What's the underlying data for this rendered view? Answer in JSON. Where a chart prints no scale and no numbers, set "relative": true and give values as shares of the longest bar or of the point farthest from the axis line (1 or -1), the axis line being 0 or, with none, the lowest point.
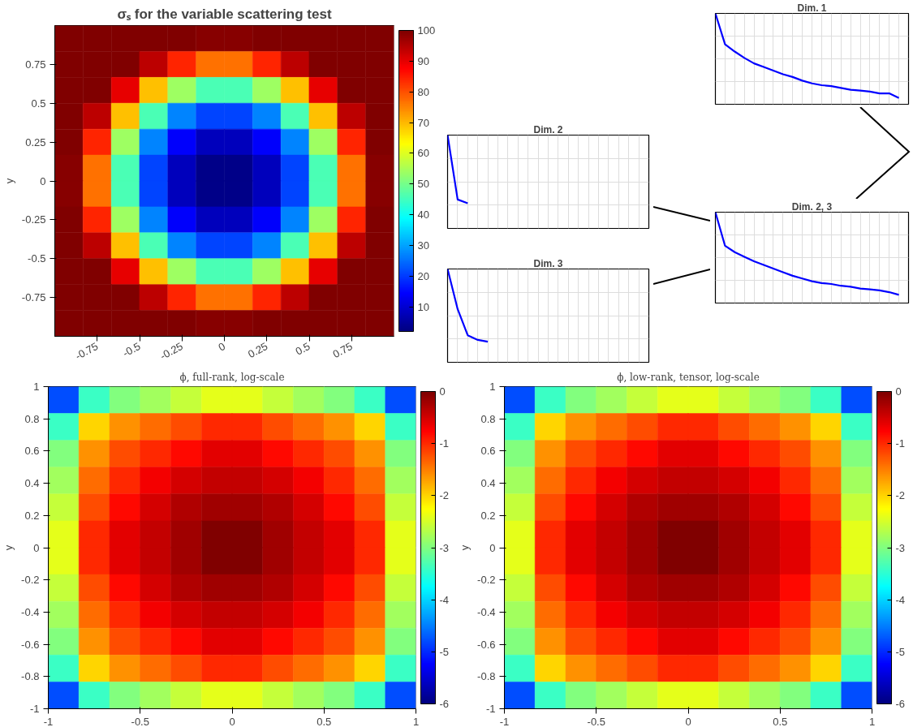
{
  "chart_data": [
    {
      "type": "heatmap",
      "title": "σₛ for the variable scattering test",
      "ylabel": "y",
      "xlim": [
        -1,
        1
      ],
      "ylim": [
        -1,
        1
      ],
      "xticks": [
        -0.75,
        -0.5,
        -0.25,
        0,
        0.25,
        0.5,
        0.75
      ],
      "yticks": [
        -0.75,
        -0.5,
        -0.25,
        0,
        0.25,
        0.5,
        0.75
      ],
      "clim": [
        2,
        100
      ],
      "cticks": [
        10,
        20,
        30,
        40,
        50,
        60,
        70,
        80,
        90,
        100
      ],
      "x": [
        -0.917,
        -0.75,
        -0.583,
        -0.417,
        -0.25,
        -0.083,
        0.083,
        0.25,
        0.417,
        0.583,
        0.75,
        0.917
      ],
      "y": [
        0.917,
        0.75,
        0.583,
        0.417,
        0.25,
        0.083,
        -0.083,
        -0.25,
        -0.417,
        -0.583,
        -0.75,
        -0.917
      ],
      "cells": [
        [
          100,
          100,
          100,
          100,
          100,
          99,
          99,
          100,
          100,
          100,
          100,
          100
        ],
        [
          100,
          100,
          100,
          94,
          84,
          77,
          77,
          84,
          94,
          100,
          100,
          100
        ],
        [
          100,
          100,
          90,
          69,
          54,
          46,
          46,
          54,
          69,
          90,
          100,
          100
        ],
        [
          100,
          94,
          69,
          46,
          27,
          21,
          21,
          27,
          46,
          69,
          94,
          100
        ],
        [
          100,
          84,
          54,
          27,
          14,
          8,
          8,
          14,
          27,
          54,
          84,
          100
        ],
        [
          99,
          77,
          46,
          21,
          8,
          3,
          3,
          8,
          21,
          46,
          77,
          99
        ],
        [
          99,
          77,
          46,
          21,
          8,
          3,
          3,
          8,
          21,
          46,
          77,
          99
        ],
        [
          100,
          84,
          54,
          27,
          14,
          8,
          8,
          14,
          27,
          54,
          84,
          100
        ],
        [
          100,
          94,
          69,
          46,
          27,
          21,
          21,
          27,
          46,
          69,
          94,
          100
        ],
        [
          100,
          100,
          90,
          69,
          54,
          46,
          46,
          54,
          69,
          90,
          100,
          100
        ],
        [
          100,
          100,
          100,
          94,
          84,
          77,
          77,
          84,
          94,
          100,
          100,
          100
        ],
        [
          100,
          100,
          100,
          100,
          100,
          99,
          99,
          100,
          100,
          100,
          100,
          100
        ]
      ]
    },
    {
      "type": "line",
      "title": "Dim. 1",
      "relative": true,
      "tick_labels": false,
      "grid": true,
      "categories": [
        null,
        null,
        null,
        null,
        null,
        null,
        null,
        null,
        null,
        null,
        null,
        null,
        null,
        null,
        null,
        null,
        null,
        null,
        null,
        null,
        null
      ],
      "series": [
        {
          "color": "#0000ff",
          "values": [
            1.0,
            0.66,
            0.58,
            0.51,
            0.45,
            0.41,
            0.37,
            0.33,
            0.3,
            0.26,
            0.23,
            0.21,
            0.2,
            0.18,
            0.16,
            0.15,
            0.14,
            0.12,
            0.12,
            0.07,
            null
          ]
        }
      ]
    },
    {
      "type": "line",
      "title": "Dim. 2",
      "relative": true,
      "tick_labels": false,
      "grid": true,
      "categories": [
        null,
        null,
        null,
        null,
        null,
        null,
        null,
        null,
        null,
        null,
        null,
        null,
        null,
        null,
        null,
        null,
        null,
        null,
        null,
        null,
        null
      ],
      "series": [
        {
          "color": "#0000ff",
          "values": [
            1.0,
            0.31,
            0.27,
            null,
            null,
            null,
            null,
            null,
            null,
            null,
            null,
            null,
            null,
            null,
            null,
            null,
            null,
            null,
            null,
            null,
            null
          ]
        }
      ]
    },
    {
      "type": "line",
      "title": "Dim. 2, 3",
      "relative": true,
      "tick_labels": false,
      "grid": true,
      "categories": [
        null,
        null,
        null,
        null,
        null,
        null,
        null,
        null,
        null,
        null,
        null,
        null,
        null,
        null,
        null,
        null,
        null,
        null,
        null,
        null,
        null
      ],
      "series": [
        {
          "color": "#0000ff",
          "values": [
            1.0,
            0.63,
            0.56,
            0.51,
            0.46,
            0.42,
            0.38,
            0.34,
            0.3,
            0.27,
            0.24,
            0.22,
            0.21,
            0.19,
            0.18,
            0.16,
            0.15,
            0.14,
            0.12,
            0.09,
            null
          ]
        }
      ]
    },
    {
      "type": "line",
      "title": "Dim. 3",
      "relative": true,
      "tick_labels": false,
      "grid": true,
      "categories": [
        null,
        null,
        null,
        null,
        null,
        null,
        null,
        null,
        null,
        null,
        null,
        null,
        null,
        null,
        null,
        null,
        null,
        null,
        null,
        null,
        null
      ],
      "series": [
        {
          "color": "#0000ff",
          "values": [
            1.0,
            0.57,
            0.29,
            0.24,
            0.22,
            null,
            null,
            null,
            null,
            null,
            null,
            null,
            null,
            null,
            null,
            null,
            null,
            null,
            null,
            null,
            null
          ]
        }
      ]
    },
    {
      "type": "heatmap",
      "title": "ϕ, full-rank, log-scale",
      "ylabel": "y",
      "xlim": [
        -1,
        1
      ],
      "ylim": [
        -1,
        1
      ],
      "xticks": [
        -1,
        -0.5,
        0,
        0.5,
        1
      ],
      "yticks": [
        -1,
        -0.8,
        -0.6,
        -0.4,
        -0.2,
        0,
        0.2,
        0.4,
        0.6,
        0.8,
        1
      ],
      "clim": [
        -6,
        0
      ],
      "cticks": [
        -6,
        -5,
        -4,
        -3,
        -2,
        -1,
        0
      ],
      "x": [
        -0.917,
        -0.75,
        -0.583,
        -0.417,
        -0.25,
        -0.083,
        0.083,
        0.25,
        0.417,
        0.583,
        0.75,
        0.917
      ],
      "y": [
        0.917,
        0.75,
        0.583,
        0.417,
        0.25,
        0.083,
        -0.083,
        -0.25,
        -0.417,
        -0.583,
        -0.75,
        -0.917
      ],
      "cells": [
        [
          -4.8,
          -3.4,
          -3,
          -2.8,
          -2.6,
          -2.4,
          -2.4,
          -2.6,
          -2.8,
          -3,
          -3.4,
          -4.8
        ],
        [
          -3.4,
          -2,
          -1.6,
          -1.4,
          -1.2,
          -1,
          -1,
          -1.2,
          -1.4,
          -1.6,
          -2,
          -3.4
        ],
        [
          -3,
          -1.6,
          -1.2,
          -1,
          -0.8,
          -0.6,
          -0.6,
          -0.8,
          -1,
          -1.2,
          -1.6,
          -3
        ],
        [
          -2.8,
          -1.4,
          -1,
          -0.7,
          -0.5,
          -0.4,
          -0.4,
          -0.5,
          -0.7,
          -1,
          -1.4,
          -2.8
        ],
        [
          -2.6,
          -1.2,
          -0.8,
          -0.5,
          -0.3,
          -0.2,
          -0.2,
          -0.3,
          -0.5,
          -0.8,
          -1.2,
          -2.6
        ],
        [
          -2.4,
          -1,
          -0.6,
          -0.4,
          -0.2,
          0,
          0,
          -0.2,
          -0.4,
          -0.6,
          -1,
          -2.4
        ],
        [
          -2.4,
          -1,
          -0.6,
          -0.4,
          -0.2,
          0,
          0,
          -0.2,
          -0.4,
          -0.6,
          -1,
          -2.4
        ],
        [
          -2.6,
          -1.2,
          -0.8,
          -0.5,
          -0.3,
          -0.2,
          -0.2,
          -0.3,
          -0.5,
          -0.8,
          -1.2,
          -2.6
        ],
        [
          -2.8,
          -1.4,
          -1,
          -0.7,
          -0.5,
          -0.4,
          -0.4,
          -0.5,
          -0.7,
          -1,
          -1.4,
          -2.8
        ],
        [
          -3,
          -1.6,
          -1.2,
          -1,
          -0.8,
          -0.6,
          -0.6,
          -0.8,
          -1,
          -1.2,
          -1.6,
          -3
        ],
        [
          -3.4,
          -2,
          -1.6,
          -1.4,
          -1.2,
          -1,
          -1,
          -1.2,
          -1.4,
          -1.6,
          -2,
          -3.4
        ],
        [
          -4.8,
          -3.4,
          -3,
          -2.8,
          -2.6,
          -2.4,
          -2.4,
          -2.6,
          -2.8,
          -3,
          -3.4,
          -4.8
        ]
      ]
    },
    {
      "type": "heatmap",
      "title": "ϕ, low-rank, tensor, log-scale",
      "ylabel": "y",
      "xlim": [
        -1,
        1
      ],
      "ylim": [
        -1,
        1
      ],
      "xticks": [
        -1,
        -0.5,
        0,
        0.5,
        1
      ],
      "yticks": [
        -1,
        -0.8,
        -0.6,
        -0.4,
        -0.2,
        0,
        0.2,
        0.4,
        0.6,
        0.8,
        1
      ],
      "clim": [
        -6,
        0
      ],
      "cticks": [
        -6,
        -5,
        -4,
        -3,
        -2,
        -1,
        0
      ],
      "x": [
        -0.917,
        -0.75,
        -0.583,
        -0.417,
        -0.25,
        -0.083,
        0.083,
        0.25,
        0.417,
        0.583,
        0.75,
        0.917
      ],
      "y": [
        0.917,
        0.75,
        0.583,
        0.417,
        0.25,
        0.083,
        -0.083,
        -0.25,
        -0.417,
        -0.583,
        -0.75,
        -0.917
      ],
      "cells": [
        [
          -4.8,
          -3.4,
          -3,
          -2.8,
          -2.6,
          -2.4,
          -2.4,
          -2.6,
          -2.8,
          -3,
          -3.4,
          -4.8
        ],
        [
          -3.4,
          -2,
          -1.6,
          -1.4,
          -1.2,
          -1,
          -1,
          -1.2,
          -1.4,
          -1.6,
          -2,
          -3.4
        ],
        [
          -3,
          -1.6,
          -1.2,
          -1,
          -0.8,
          -0.6,
          -0.6,
          -0.8,
          -1,
          -1.2,
          -1.6,
          -3
        ],
        [
          -2.8,
          -1.4,
          -1,
          -0.7,
          -0.5,
          -0.4,
          -0.4,
          -0.5,
          -0.7,
          -1,
          -1.4,
          -2.8
        ],
        [
          -2.6,
          -1.2,
          -0.8,
          -0.5,
          -0.3,
          -0.2,
          -0.2,
          -0.3,
          -0.5,
          -0.8,
          -1.2,
          -2.6
        ],
        [
          -2.4,
          -1,
          -0.6,
          -0.4,
          -0.2,
          0,
          0,
          -0.2,
          -0.4,
          -0.6,
          -1,
          -2.4
        ],
        [
          -2.4,
          -1,
          -0.6,
          -0.4,
          -0.2,
          0,
          0,
          -0.2,
          -0.4,
          -0.6,
          -1,
          -2.4
        ],
        [
          -2.6,
          -1.2,
          -0.8,
          -0.5,
          -0.3,
          -0.2,
          -0.2,
          -0.3,
          -0.5,
          -0.8,
          -1.2,
          -2.6
        ],
        [
          -2.8,
          -1.4,
          -1,
          -0.7,
          -0.5,
          -0.4,
          -0.4,
          -0.5,
          -0.7,
          -1,
          -1.4,
          -2.8
        ],
        [
          -3,
          -1.6,
          -1.2,
          -1,
          -0.8,
          -0.6,
          -0.6,
          -0.8,
          -1,
          -1.2,
          -1.6,
          -3
        ],
        [
          -3.4,
          -2,
          -1.6,
          -1.4,
          -1.2,
          -1,
          -1,
          -1.2,
          -1.4,
          -1.6,
          -2,
          -3.4
        ],
        [
          -4.8,
          -3.4,
          -3,
          -2.8,
          -2.6,
          -2.4,
          -2.4,
          -2.6,
          -2.8,
          -3,
          -3.4,
          -4.8
        ]
      ]
    }
  ]
}
